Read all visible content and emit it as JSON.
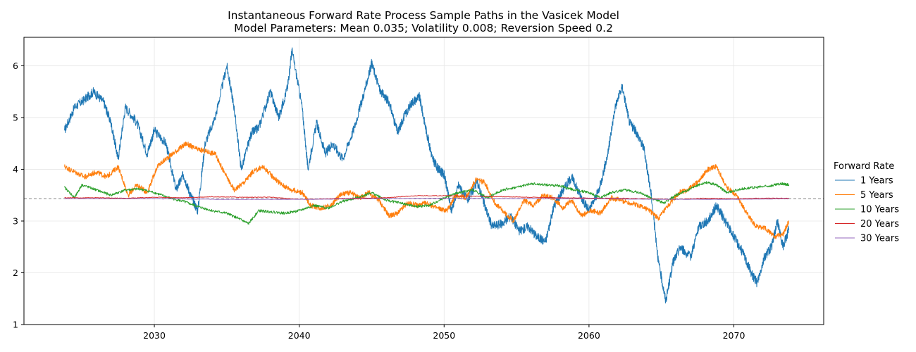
{
  "chart_data": {
    "type": "line",
    "title": "Instantaneous Forward Rate Process Sample Paths in the Vasicek Model",
    "subtitle": "Model Parameters: Mean 0.035; Volatility 0.008; Reversion Speed 0.2",
    "xlabel": "",
    "ylabel": "",
    "xlim": [
      2021.0,
      2076.2
    ],
    "ylim": [
      1.0,
      6.55
    ],
    "xticks": [
      2030,
      2040,
      2050,
      2060,
      2070
    ],
    "yticks": [
      1,
      2,
      3,
      4,
      5,
      6
    ],
    "grid": true,
    "legend": {
      "title": "Forward Rate",
      "position": "right"
    },
    "reference_line": {
      "y": 3.43,
      "style": "dashed",
      "color": "#808080"
    },
    "series": [
      {
        "name": "1 Years",
        "color": "#1f77b4",
        "x": [
          2023.8,
          2024.5,
          2025.2,
          2025.8,
          2026.5,
          2027.0,
          2027.5,
          2028.0,
          2028.8,
          2029.5,
          2030.0,
          2030.8,
          2031.5,
          2032.0,
          2032.5,
          2033.0,
          2033.5,
          2034.2,
          2035.0,
          2035.5,
          2036.0,
          2036.7,
          2037.2,
          2038.0,
          2038.6,
          2039.2,
          2039.5,
          2040.2,
          2040.6,
          2041.2,
          2041.8,
          2042.3,
          2043.0,
          2043.8,
          2044.5,
          2045.0,
          2045.6,
          2046.2,
          2046.8,
          2047.2,
          2047.8,
          2048.3,
          2048.8,
          2049.2,
          2049.6,
          2050.0,
          2050.5,
          2051.0,
          2051.6,
          2052.3,
          2052.8,
          2053.3,
          2054.0,
          2054.6,
          2055.2,
          2055.8,
          2056.4,
          2057.0,
          2057.6,
          2058.2,
          2058.8,
          2059.4,
          2060.0,
          2060.7,
          2061.3,
          2061.8,
          2062.3,
          2062.8,
          2063.3,
          2063.8,
          2064.3,
          2064.8,
          2065.3,
          2065.8,
          2066.3,
          2067.0,
          2067.6,
          2068.2,
          2068.8,
          2069.4,
          2070.0,
          2070.6,
          2071.2,
          2071.6,
          2072.1,
          2072.6,
          2073.0,
          2073.4,
          2073.8
        ],
        "values": [
          4.75,
          5.2,
          5.35,
          5.5,
          5.3,
          4.9,
          4.2,
          5.2,
          4.9,
          4.3,
          4.75,
          4.5,
          3.6,
          3.9,
          3.5,
          3.2,
          4.5,
          5.0,
          6.0,
          5.2,
          4.0,
          4.7,
          4.8,
          5.5,
          5.0,
          5.6,
          6.3,
          5.2,
          4.0,
          4.9,
          4.3,
          4.5,
          4.2,
          4.8,
          5.5,
          6.05,
          5.5,
          5.3,
          4.7,
          5.0,
          5.3,
          5.4,
          4.7,
          4.2,
          4.0,
          3.9,
          3.2,
          3.7,
          3.4,
          3.75,
          3.3,
          2.9,
          2.95,
          3.1,
          2.8,
          2.9,
          2.7,
          2.6,
          3.3,
          3.6,
          3.85,
          3.5,
          3.2,
          3.6,
          4.3,
          5.2,
          5.6,
          4.9,
          4.7,
          4.4,
          3.5,
          2.2,
          1.45,
          2.2,
          2.5,
          2.3,
          2.9,
          3.0,
          3.3,
          3.0,
          2.7,
          2.4,
          2.0,
          1.8,
          2.3,
          2.5,
          3.0,
          2.5,
          2.85
        ]
      },
      {
        "name": "5 Years",
        "color": "#ff7f0e",
        "x": [
          2023.8,
          2024.5,
          2025.2,
          2026.0,
          2026.7,
          2027.5,
          2028.2,
          2028.8,
          2029.5,
          2030.2,
          2030.8,
          2031.5,
          2032.2,
          2032.8,
          2033.5,
          2034.2,
          2034.8,
          2035.5,
          2036.2,
          2036.8,
          2037.5,
          2038.2,
          2038.8,
          2039.5,
          2040.2,
          2040.8,
          2041.5,
          2042.2,
          2042.8,
          2043.5,
          2044.2,
          2044.8,
          2045.5,
          2046.2,
          2046.8,
          2047.5,
          2048.2,
          2048.8,
          2049.5,
          2050.2,
          2050.8,
          2051.5,
          2052.2,
          2052.8,
          2053.5,
          2054.2,
          2054.8,
          2055.5,
          2056.2,
          2056.8,
          2057.5,
          2058.2,
          2058.8,
          2059.5,
          2060.2,
          2060.8,
          2061.5,
          2062.2,
          2062.8,
          2063.5,
          2064.2,
          2064.8,
          2065.5,
          2066.2,
          2066.8,
          2067.5,
          2068.2,
          2068.8,
          2069.5,
          2070.2,
          2070.8,
          2071.5,
          2072.2,
          2072.8,
          2073.4,
          2073.8
        ],
        "values": [
          4.05,
          3.95,
          3.85,
          3.95,
          3.85,
          4.05,
          3.5,
          3.7,
          3.55,
          4.05,
          4.2,
          4.35,
          4.5,
          4.4,
          4.35,
          4.3,
          3.95,
          3.6,
          3.75,
          3.95,
          4.05,
          3.85,
          3.7,
          3.6,
          3.55,
          3.3,
          3.25,
          3.3,
          3.5,
          3.55,
          3.45,
          3.55,
          3.4,
          3.1,
          3.15,
          3.35,
          3.3,
          3.35,
          3.25,
          3.2,
          3.5,
          3.45,
          3.8,
          3.75,
          3.35,
          3.15,
          3.0,
          3.4,
          3.3,
          3.5,
          3.45,
          3.25,
          3.4,
          3.1,
          3.2,
          3.15,
          3.45,
          3.4,
          3.35,
          3.3,
          3.2,
          3.05,
          3.3,
          3.55,
          3.6,
          3.75,
          4.0,
          4.05,
          3.65,
          3.5,
          3.2,
          2.9,
          2.85,
          2.7,
          2.75,
          3.0
        ]
      },
      {
        "name": "10 Years",
        "color": "#2ca02c",
        "x": [
          2023.8,
          2024.5,
          2025.0,
          2026.0,
          2027.0,
          2028.0,
          2029.0,
          2030.0,
          2031.0,
          2032.0,
          2033.0,
          2034.0,
          2035.0,
          2035.8,
          2036.5,
          2037.2,
          2038.0,
          2039.0,
          2040.0,
          2041.0,
          2042.0,
          2043.0,
          2044.0,
          2045.0,
          2046.0,
          2047.0,
          2048.0,
          2049.0,
          2050.0,
          2051.0,
          2052.0,
          2053.0,
          2054.0,
          2055.0,
          2056.0,
          2057.0,
          2058.0,
          2059.0,
          2060.0,
          2060.8,
          2061.5,
          2062.5,
          2063.5,
          2064.5,
          2065.2,
          2066.0,
          2067.0,
          2068.0,
          2068.8,
          2069.5,
          2070.5,
          2071.5,
          2072.5,
          2073.3,
          2073.8
        ],
        "values": [
          3.65,
          3.45,
          3.7,
          3.6,
          3.5,
          3.6,
          3.62,
          3.55,
          3.45,
          3.38,
          3.28,
          3.2,
          3.15,
          3.05,
          2.95,
          3.2,
          3.18,
          3.15,
          3.2,
          3.3,
          3.25,
          3.38,
          3.45,
          3.55,
          3.4,
          3.35,
          3.28,
          3.3,
          3.45,
          3.55,
          3.6,
          3.45,
          3.6,
          3.65,
          3.72,
          3.7,
          3.68,
          3.6,
          3.55,
          3.45,
          3.55,
          3.6,
          3.55,
          3.42,
          3.35,
          3.5,
          3.62,
          3.75,
          3.7,
          3.55,
          3.62,
          3.65,
          3.68,
          3.72,
          3.7
        ]
      },
      {
        "name": "20 Years",
        "color": "#d62728",
        "x": [
          2023.8,
          2026.0,
          2028.0,
          2030.0,
          2032.0,
          2034.0,
          2036.0,
          2038.0,
          2040.0,
          2042.0,
          2044.0,
          2046.0,
          2048.0,
          2050.0,
          2052.0,
          2054.0,
          2056.0,
          2058.0,
          2060.0,
          2062.0,
          2064.0,
          2066.0,
          2068.0,
          2070.0,
          2072.0,
          2073.8
        ],
        "values": [
          3.45,
          3.45,
          3.44,
          3.46,
          3.45,
          3.47,
          3.46,
          3.46,
          3.42,
          3.43,
          3.44,
          3.45,
          3.49,
          3.49,
          3.48,
          3.47,
          3.46,
          3.45,
          3.44,
          3.44,
          3.43,
          3.42,
          3.44,
          3.43,
          3.44,
          3.44
        ]
      },
      {
        "name": "30 Years",
        "color": "#9467bd",
        "x": [
          2023.8,
          2030.0,
          2035.0,
          2040.0,
          2045.0,
          2050.0,
          2055.0,
          2060.0,
          2065.0,
          2070.0,
          2073.8
        ],
        "values": [
          3.43,
          3.43,
          3.42,
          3.42,
          3.43,
          3.44,
          3.43,
          3.43,
          3.42,
          3.42,
          3.43
        ]
      }
    ]
  }
}
